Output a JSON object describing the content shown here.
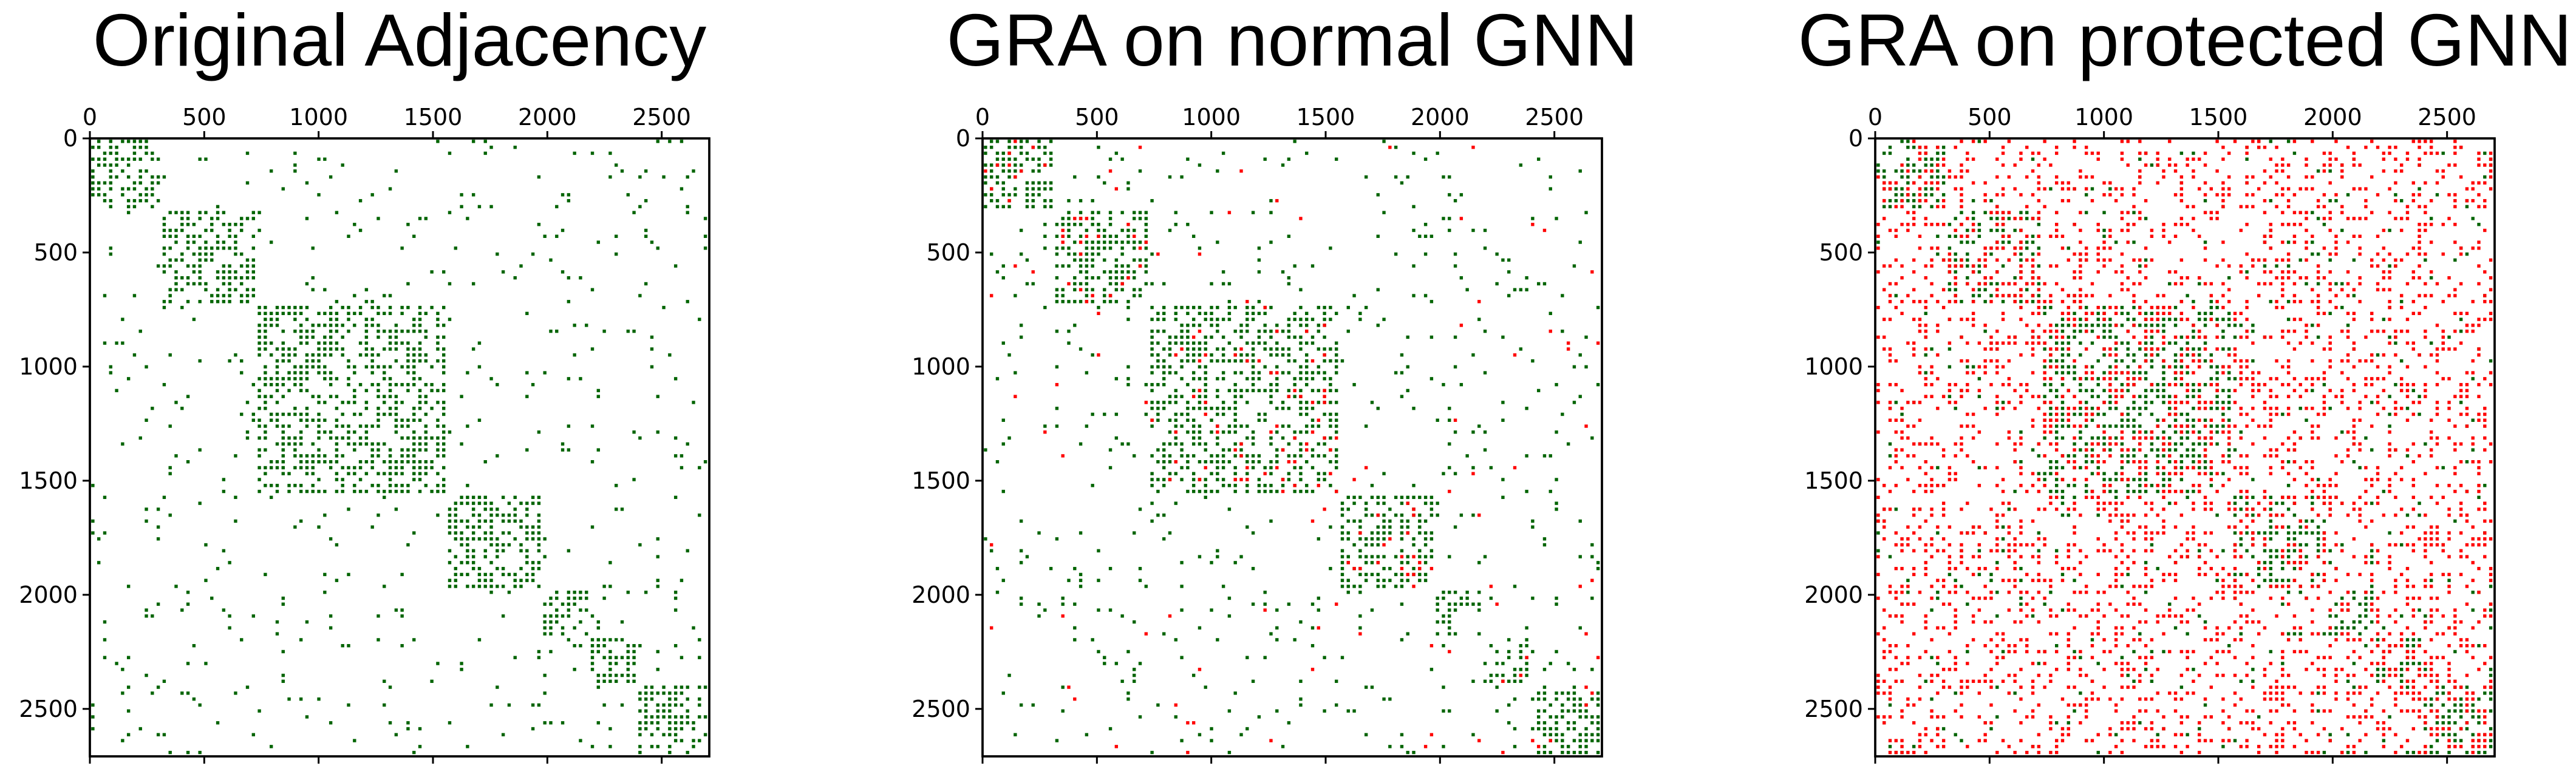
{
  "figure": {
    "colors": {
      "original_edge": "#006400",
      "fake_edge": "#ff0000",
      "background": "#ffffff"
    }
  },
  "chart_data": [
    {
      "type": "heatmap",
      "title": "Original Adjacency",
      "xlabel": "",
      "ylabel": "",
      "xlim": [
        0,
        2708
      ],
      "ylim": [
        2708,
        0
      ],
      "x_ticks": [
        "0",
        "500",
        "1000",
        "1500",
        "2000",
        "2500"
      ],
      "y_ticks": [
        "0",
        "500",
        "1000",
        "1500",
        "2000",
        "2500"
      ],
      "grid": false,
      "clusters": [
        [
          0,
          300
        ],
        [
          300,
          720
        ],
        [
          720,
          1540
        ],
        [
          1540,
          1960
        ],
        [
          1960,
          2180
        ],
        [
          2180,
          2380
        ],
        [
          2380,
          2708
        ]
      ],
      "series": [
        {
          "color": "#006400",
          "density": 0.05,
          "cluster_density": 0.55
        }
      ]
    },
    {
      "type": "heatmap",
      "title": "GRA on normal GNN",
      "xlabel": "",
      "ylabel": "",
      "xlim": [
        0,
        2708
      ],
      "ylim": [
        2708,
        0
      ],
      "x_ticks": [
        "0",
        "500",
        "1000",
        "1500",
        "2000",
        "2500"
      ],
      "y_ticks": [
        "0",
        "500",
        "1000",
        "1500",
        "2000",
        "2500"
      ],
      "grid": false,
      "clusters": [
        [
          0,
          300
        ],
        [
          300,
          720
        ],
        [
          720,
          1540
        ],
        [
          1540,
          1960
        ],
        [
          1960,
          2180
        ],
        [
          2180,
          2380
        ],
        [
          2380,
          2708
        ]
      ],
      "series": [
        {
          "color": "#006400",
          "density": 0.05,
          "cluster_density": 0.55
        },
        {
          "color": "#ff0000",
          "density": 0.008,
          "cluster_density": 0.06
        }
      ]
    },
    {
      "type": "heatmap",
      "title": "GRA on protected GNN",
      "xlabel": "",
      "ylabel": "",
      "xlim": [
        0,
        2708
      ],
      "ylim": [
        2708,
        0
      ],
      "x_ticks": [
        "0",
        "500",
        "1000",
        "1500",
        "2000",
        "2500"
      ],
      "y_ticks": [
        "0",
        "500",
        "1000",
        "1500",
        "2000",
        "2500"
      ],
      "grid": false,
      "clusters": [
        [
          0,
          300
        ],
        [
          300,
          720
        ],
        [
          720,
          1540
        ],
        [
          1540,
          1960
        ],
        [
          1960,
          2180
        ],
        [
          2180,
          2380
        ],
        [
          2380,
          2708
        ]
      ],
      "series": [
        {
          "color": "#006400",
          "density": 0.05,
          "cluster_density": 0.5
        },
        {
          "color": "#ff0000",
          "density": 0.28,
          "cluster_density": 0.3
        }
      ]
    }
  ]
}
